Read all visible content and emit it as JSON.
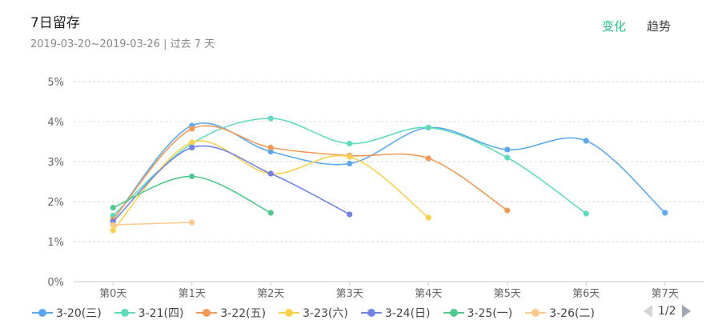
{
  "header": {
    "title": "7日留存",
    "subtitle": "2019-03-20~2019-03-26 | 过去 7 天",
    "toggle_change": "变化",
    "toggle_trend": "趋势"
  },
  "legend": {
    "page": "1/2"
  },
  "colors": {
    "accent": "#27c48f"
  },
  "chart_data": {
    "type": "line",
    "categories": [
      "第0天",
      "第1天",
      "第2天",
      "第3天",
      "第4天",
      "第5天",
      "第6天",
      "第7天"
    ],
    "yticks": [
      "0%",
      "1%",
      "2%",
      "3%",
      "4%",
      "5%"
    ],
    "ylim": [
      0,
      5
    ],
    "grid": true,
    "legend_position": "bottom",
    "smooth": true,
    "series": [
      {
        "name": "3-20(三)",
        "color": "#5aa9ee",
        "values": [
          1.55,
          3.9,
          3.25,
          2.95,
          3.85,
          3.3,
          3.52,
          1.72
        ]
      },
      {
        "name": "3-21(四)",
        "color": "#5ddcbd",
        "values": [
          1.65,
          3.45,
          4.08,
          3.45,
          3.85,
          3.1,
          1.7,
          null
        ]
      },
      {
        "name": "3-22(五)",
        "color": "#f29a55",
        "values": [
          1.55,
          3.82,
          3.35,
          3.15,
          3.08,
          1.78,
          null,
          null
        ]
      },
      {
        "name": "3-23(六)",
        "color": "#fbd04a",
        "values": [
          1.28,
          3.48,
          2.7,
          3.12,
          1.6,
          null,
          null,
          null
        ]
      },
      {
        "name": "3-24(日)",
        "color": "#6f83e8",
        "values": [
          1.5,
          3.35,
          2.7,
          1.68,
          null,
          null,
          null,
          null
        ]
      },
      {
        "name": "3-25(一)",
        "color": "#4ecb8c",
        "values": [
          1.85,
          2.63,
          1.72,
          null,
          null,
          null,
          null,
          null
        ]
      },
      {
        "name": "3-26(二)",
        "color": "#fdc98c",
        "values": [
          1.42,
          1.48,
          null,
          null,
          null,
          null,
          null,
          null
        ]
      }
    ]
  }
}
